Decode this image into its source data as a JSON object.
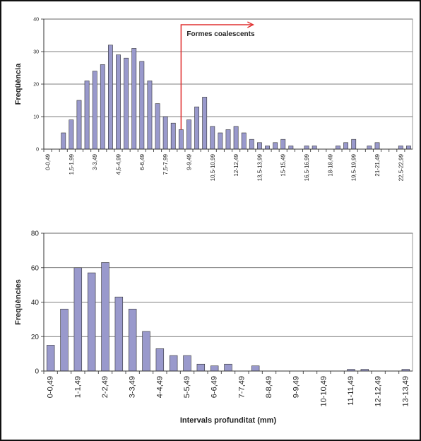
{
  "chart_data": [
    {
      "type": "bar",
      "y_label": "Freqüència",
      "annotation": "Formes coalescents",
      "categories": [
        "0-0,49",
        null,
        null,
        "1,5-1,99",
        null,
        null,
        "3-3,49",
        null,
        null,
        "4,5-4,99",
        null,
        null,
        "6-6,49",
        null,
        null,
        "7,5-7,99",
        null,
        null,
        "9-9,49",
        null,
        null,
        "10,5-10,99",
        null,
        null,
        "12-12,49",
        null,
        null,
        "13,5-13,99",
        null,
        null,
        "15-15,49",
        null,
        null,
        "16,5-16,99",
        null,
        null,
        "18-18,49",
        null,
        null,
        "19,5-19,99",
        null,
        null,
        "21-21,49",
        null,
        null,
        "22,5-22,99",
        null
      ],
      "values": [
        0,
        0,
        5,
        9,
        15,
        21,
        24,
        26,
        32,
        29,
        28,
        31,
        27,
        21,
        14,
        10,
        8,
        6,
        9,
        13,
        16,
        7,
        5,
        6,
        7,
        5,
        3,
        2,
        1,
        2,
        3,
        1,
        0,
        1,
        1,
        0,
        0,
        1,
        2,
        3,
        0,
        1,
        2,
        0,
        0,
        1,
        1
      ],
      "color": "#9999cc",
      "ylim": [
        0,
        40
      ],
      "yticks": [
        0,
        10,
        20,
        30,
        40
      ],
      "grid": true
    },
    {
      "type": "bar",
      "y_label": "Freqüències",
      "x_label": "Intervals profunditat (mm)",
      "categories": [
        "0-0,49",
        null,
        "1-1,49",
        null,
        "2-2,49",
        null,
        "3-3,49",
        null,
        "4-4,49",
        null,
        "5-5,49",
        null,
        "6-6,49",
        null,
        "7-7,49",
        null,
        "8-8,49",
        null,
        "9-9,49",
        null,
        "10-10,49",
        null,
        "11-11,49",
        null,
        "12-12,49",
        null,
        "13-13,49"
      ],
      "values": [
        15,
        36,
        60,
        57,
        63,
        43,
        36,
        23,
        13,
        9,
        9,
        4,
        3,
        4,
        0,
        3,
        0,
        0,
        0,
        0,
        0,
        0,
        1,
        1,
        0,
        0,
        1
      ],
      "color": "#9999cc",
      "ylim": [
        0,
        80
      ],
      "yticks": [
        0,
        20,
        40,
        60,
        80
      ],
      "grid": true
    }
  ]
}
